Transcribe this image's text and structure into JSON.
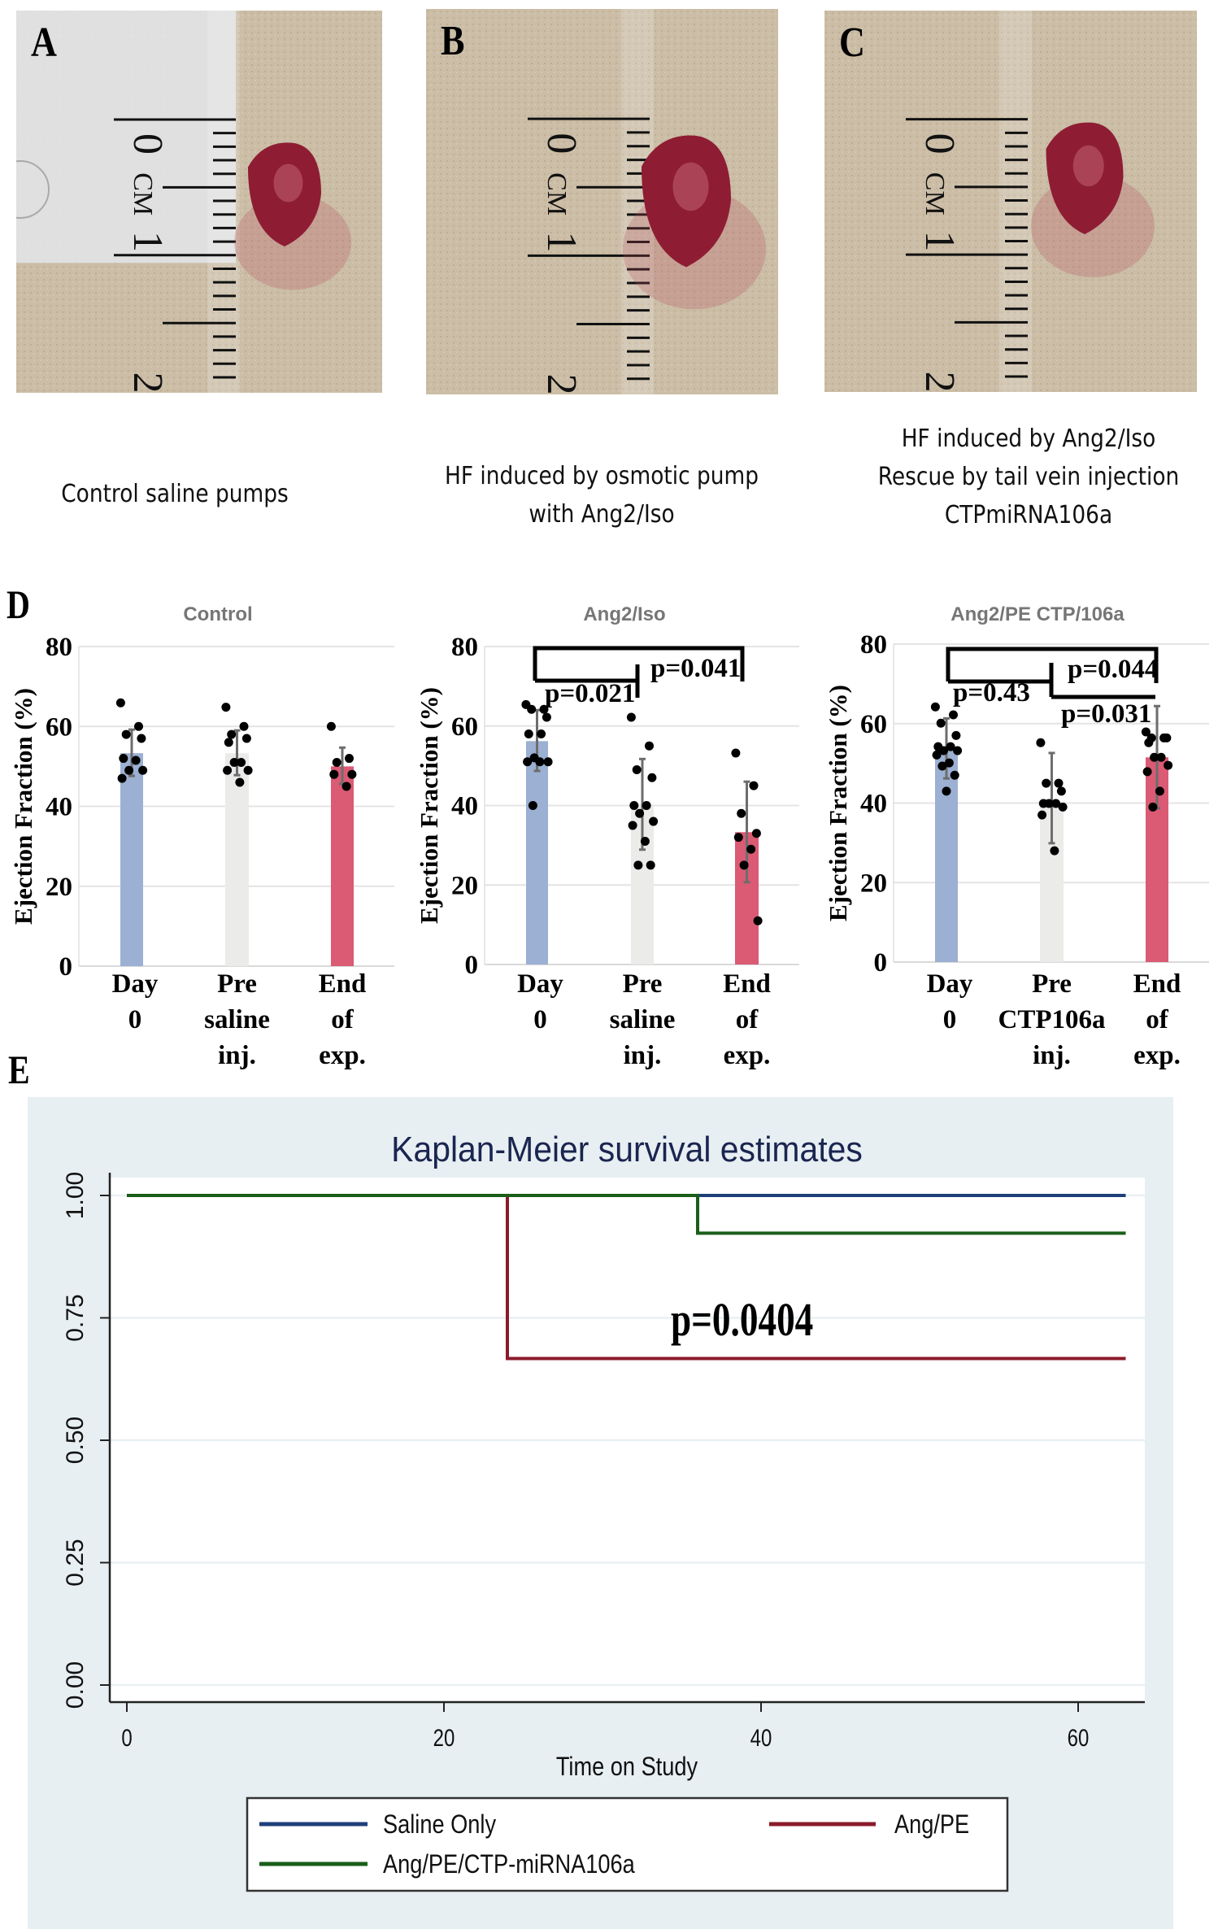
{
  "figure": {
    "panel_labels": [
      "A",
      "B",
      "C",
      "D",
      "E"
    ],
    "photos": [
      {
        "label": "A",
        "ruler_text": [
          "0",
          "CM",
          "1",
          "2"
        ],
        "caption_lines": [
          "Control saline pumps"
        ]
      },
      {
        "label": "B",
        "ruler_text": [
          "0",
          "CM",
          "1",
          "2"
        ],
        "caption_lines": [
          "HF induced by osmotic pump",
          "with Ang2/Iso"
        ]
      },
      {
        "label": "C",
        "ruler_text": [
          "0",
          "CM",
          "1",
          "2"
        ],
        "caption_lines": [
          "HF induced by Ang2/Iso",
          "Rescue by tail vein injection",
          "CTPmiRNA106a"
        ]
      }
    ],
    "colors": {
      "bar_day0": "#9bb0d3",
      "bar_pre": "#ebebea",
      "bar_end": "#db5a74",
      "error_bar": "#6d6d6d",
      "dot": "#000000",
      "km_background": "#e7eff2",
      "km_title": "#1a2550",
      "saline": "#1f3f7a",
      "angpe": "#8b1a2b",
      "rescue": "#1a5e1a"
    }
  },
  "chart_data": [
    {
      "type": "bar",
      "panel": "D",
      "title": "Control",
      "ylabel": "Ejection Fraction (%)",
      "ylim": [
        0,
        80
      ],
      "yticks": [
        "0",
        "20",
        "40",
        "60",
        "80"
      ],
      "grid": true,
      "categories": [
        [
          "Day",
          "0"
        ],
        [
          "Pre",
          "saline",
          "inj."
        ],
        [
          "End",
          "of",
          "exp."
        ]
      ],
      "values": [
        53.3,
        53.3,
        50.0
      ],
      "error": [
        [
          47.6,
          59.2
        ],
        [
          47.8,
          59.0
        ],
        [
          45.6,
          54.7
        ]
      ],
      "points": [
        [
          65.9,
          60,
          58,
          57,
          52,
          51.5,
          49,
          49,
          47
        ],
        [
          64.8,
          60,
          58,
          57,
          56,
          51,
          51,
          49,
          49,
          46
        ],
        [
          60,
          52,
          51,
          48,
          48,
          45
        ]
      ],
      "annotations": []
    },
    {
      "type": "bar",
      "panel": "D",
      "title": "Ang2/Iso",
      "ylabel": "Ejection Fraction (%)",
      "ylim": [
        0,
        80
      ],
      "yticks": [
        "0",
        "20",
        "40",
        "60",
        "80"
      ],
      "grid": true,
      "categories": [
        [
          "Day",
          "0"
        ],
        [
          "Pre",
          "saline",
          "inj."
        ],
        [
          "End",
          "of",
          "exp."
        ]
      ],
      "values": [
        56.2,
        40.3,
        33.3
      ],
      "error": [
        [
          48.7,
          64.0
        ],
        [
          28.9,
          51.7
        ],
        [
          20.7,
          46.0
        ]
      ],
      "points": [
        [
          65.4,
          64.2,
          64.2,
          62.2,
          58,
          58,
          52,
          51,
          51,
          51,
          40
        ],
        [
          62.2,
          55,
          49,
          47,
          40,
          40,
          38,
          36,
          35,
          31,
          25,
          25
        ],
        [
          53.2,
          45,
          38,
          33,
          32,
          29,
          25,
          11
        ]
      ],
      "annotations": [
        {
          "text": "p=0.041",
          "compare": [
            "Day 0",
            "Pre saline inj."
          ]
        },
        {
          "text": "p=0.021",
          "compare": [
            "Day 0",
            "End of exp."
          ]
        }
      ]
    },
    {
      "type": "bar",
      "panel": "D",
      "title": "Ang2/PE CTP/106a",
      "ylabel": "Ejection Fraction (%)",
      "ylim": [
        0,
        80
      ],
      "yticks": [
        "0",
        "20",
        "40",
        "60",
        "80"
      ],
      "grid": true,
      "categories": [
        [
          "Day",
          "0"
        ],
        [
          "Pre",
          "CTP106a",
          "inj."
        ],
        [
          "End",
          "of",
          "exp."
        ]
      ],
      "values": [
        53.6,
        39.5,
        51.5
      ],
      "error": [
        [
          46.2,
          61.3
        ],
        [
          29.9,
          52.6
        ],
        [
          38.7,
          64.4
        ]
      ],
      "points": [
        [
          64.2,
          62.2,
          60.1,
          57,
          54.2,
          54.2,
          53.2,
          53.2,
          52.1,
          50.1,
          49.3,
          47,
          43
        ],
        [
          55.2,
          45,
          45,
          43,
          39.9,
          39.9,
          39.9,
          39,
          37,
          28
        ],
        [
          57.9,
          56.4,
          56.4,
          56.4,
          55.2,
          51.5,
          51.5,
          49.5,
          47.9,
          43,
          39
        ]
      ],
      "annotations": [
        {
          "text": "p=0.044",
          "compare": [
            "Day 0",
            "Pre CTP106a inj."
          ]
        },
        {
          "text": "p=0.43",
          "compare": [
            "Day 0",
            "End of exp."
          ]
        },
        {
          "text": "p=0.031",
          "compare": [
            "Pre CTP106a inj.",
            "End of exp."
          ]
        }
      ]
    },
    {
      "type": "line",
      "panel": "E",
      "title": "Kaplan-Meier survival estimates",
      "xlabel": "Time on Study",
      "ylabel": "",
      "xlim": [
        -2,
        65
      ],
      "ylim": [
        0,
        1
      ],
      "xticks": [
        "0",
        "20",
        "40",
        "60"
      ],
      "yticks": [
        "0.00",
        "0.25",
        "0.50",
        "0.75",
        "1.00"
      ],
      "grid": true,
      "legend_position": "bottom",
      "annotation": "p=0.0404",
      "series": [
        {
          "name": "Saline Only",
          "step": true,
          "x": [
            0,
            63
          ],
          "y": [
            1.0,
            1.0
          ]
        },
        {
          "name": "Ang/PE",
          "step": true,
          "x": [
            0,
            24,
            63
          ],
          "y": [
            1.0,
            0.667,
            0.667
          ]
        },
        {
          "name": "Ang/PE/CTP-miRNA106a",
          "step": true,
          "x": [
            0,
            36,
            63
          ],
          "y": [
            1.0,
            0.923,
            0.923
          ]
        }
      ]
    }
  ]
}
